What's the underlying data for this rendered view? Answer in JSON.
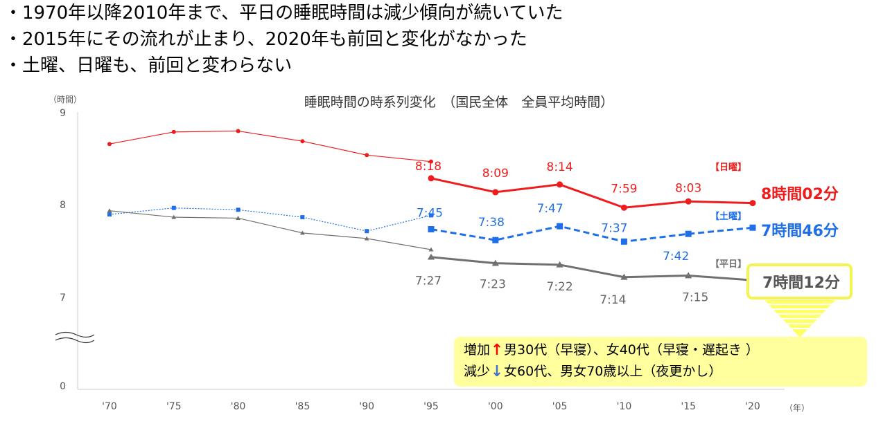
{
  "bullets": [
    "・1970年以降2010年まで、平日の睡眠時間は減少傾向が続いていた",
    "・2015年にその流れが止まり、2020年も前回と変化がなかった",
    "・土曜、日曜も、前回と変わらない"
  ],
  "chart_data": {
    "type": "line",
    "title": "睡眠時間の時系列変化　（国民全体　全員平均時間）",
    "y_unit": "（時間）",
    "x_unit": "（年）",
    "categories": [
      "'70",
      "'75",
      "'80",
      "'85",
      "'90",
      "'95",
      "'00",
      "'05",
      "'10",
      "'15",
      "'20"
    ],
    "y_ticks": [
      "9",
      "8",
      "7",
      "0"
    ],
    "ylim": [
      7,
      9
    ],
    "axis_break": true,
    "series": [
      {
        "name": "【日曜】",
        "color": "#ee1c1c",
        "segment": "old",
        "marker": "circle",
        "line": "thin",
        "x": [
          "'70",
          "'75",
          "'80",
          "'85",
          "'90",
          "'95"
        ],
        "values": [
          8.67,
          8.8,
          8.81,
          8.7,
          8.55,
          8.48
        ]
      },
      {
        "name": "【日曜】",
        "color": "#ee1c1c",
        "segment": "new",
        "marker": "circle",
        "line": "thick",
        "x": [
          "'95",
          "'00",
          "'05",
          "'10",
          "'15",
          "'20"
        ],
        "values": [
          8.3,
          8.15,
          8.233,
          7.983,
          8.05,
          8.033
        ],
        "labels": [
          "8:18",
          "8:09",
          "8:14",
          "7:59",
          "8:03"
        ]
      },
      {
        "name": "【土曜】",
        "color": "#1e6fe8",
        "segment": "old",
        "marker": "square",
        "line": "thin-dotted",
        "x": [
          "'70",
          "'75",
          "'80",
          "'85",
          "'90",
          "'95"
        ],
        "values": [
          7.91,
          7.98,
          7.96,
          7.88,
          7.73,
          7.9
        ]
      },
      {
        "name": "【土曜】",
        "color": "#1e6fe8",
        "segment": "new",
        "marker": "square",
        "line": "thick-dashed",
        "x": [
          "'95",
          "'00",
          "'05",
          "'10",
          "'15",
          "'20"
        ],
        "values": [
          7.75,
          7.633,
          7.783,
          7.617,
          7.7,
          7.767
        ],
        "labels": [
          "7:45",
          "7:38",
          "7:47",
          "7:37",
          "7:42"
        ]
      },
      {
        "name": "【平日】",
        "color": "#707070",
        "segment": "old",
        "marker": "triangle",
        "line": "thin",
        "x": [
          "'70",
          "'75",
          "'80",
          "'85",
          "'90",
          "'95"
        ],
        "values": [
          7.95,
          7.88,
          7.87,
          7.71,
          7.65,
          7.53
        ]
      },
      {
        "name": "【平日】",
        "color": "#707070",
        "segment": "new",
        "marker": "triangle",
        "line": "thick",
        "x": [
          "'95",
          "'00",
          "'05",
          "'10",
          "'15",
          "'20"
        ],
        "values": [
          7.45,
          7.383,
          7.367,
          7.233,
          7.25,
          7.2
        ],
        "labels": [
          "7:27",
          "7:23",
          "7:22",
          "7:14",
          "7:15"
        ]
      }
    ],
    "end_labels": {
      "sunday": "8時間02分",
      "saturday": "7時間46分",
      "weekday": "7時間12分"
    }
  },
  "note": {
    "increase_label": "増加",
    "increase_text": "男30代（早寝）、女40代（早寝・遅起き ）",
    "decrease_label": "減少",
    "decrease_text": "女60代、男女70歳以上（夜更かし）"
  }
}
